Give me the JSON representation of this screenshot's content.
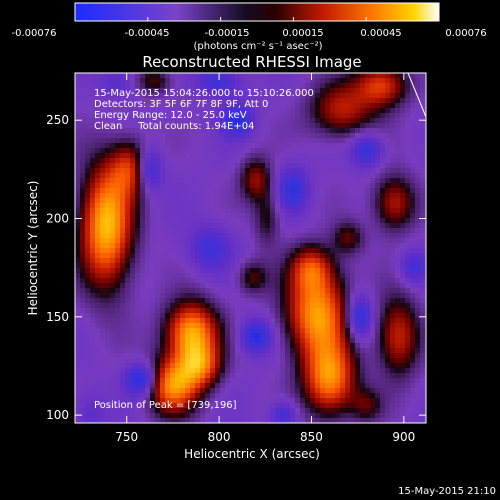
{
  "colorbar": {
    "ticks": [
      "-0.00076",
      "-0.00045",
      "-0.00015",
      "0.00015",
      "0.00045",
      "0.00076"
    ],
    "units": "(photons cm⁻² s⁻¹ asec⁻²)"
  },
  "chart_data": {
    "type": "heatmap",
    "title": "Reconstructed RHESSI Image",
    "xlabel": "Heliocentric X (arcsec)",
    "ylabel": "Heliocentric Y (arcsec)",
    "xlim": [
      722,
      912
    ],
    "ylim": [
      96,
      274
    ],
    "xticks": [
      750,
      800,
      850,
      900
    ],
    "yticks": [
      100,
      150,
      200,
      250
    ],
    "colorbar_range": [
      -0.00076,
      0.00076
    ],
    "colormap": [
      "#0000ff",
      "#3b1ba6",
      "#6a2aa8",
      "#000000",
      "#b01010",
      "#ff5a00",
      "#ffd800",
      "#ffffff"
    ],
    "annotations": [
      "15-May-2015 15:04:26.000 to 15:10:26.000",
      "Detectors: 3F 5F 6F 7F 8F 9F, Att 0",
      "Energy Range: 12.0 - 25.0 keV",
      "Clean     Total counts: 1.94E+04"
    ],
    "peak_label": "Position of Peak = [739,196]",
    "peak": [
      739,
      196
    ],
    "timestamp": "15-May-2015 21:10"
  }
}
